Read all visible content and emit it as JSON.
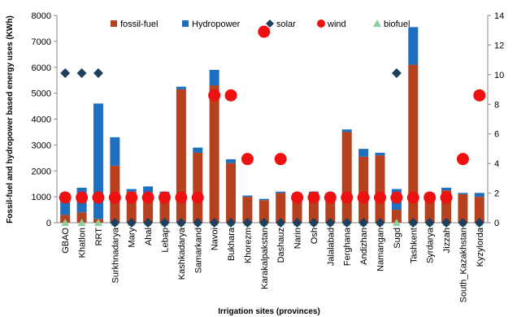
{
  "chart_data": {
    "type": "bar",
    "xlabel": "Irrigation sites (provinces)",
    "ylabel": "Fossil-fuel and hydropower based energy uses (KWh)",
    "ylim": [
      0,
      8000
    ],
    "y2lim": [
      0,
      14
    ],
    "yticks": [
      0,
      1000,
      2000,
      3000,
      4000,
      5000,
      6000,
      7000,
      8000
    ],
    "y2ticks": [
      0,
      2,
      4,
      6,
      8,
      10,
      12,
      14
    ],
    "legend_position": "top",
    "categories": [
      "GBAO",
      "Khatlon",
      "RRT",
      "Surkhnadarya",
      "Mary",
      "Ahal",
      "Lebap",
      "Kashkadarya",
      "Samarkand",
      "Navoi",
      "Bukhara",
      "Khorezm",
      "Karakalpakstan",
      "Dashauz",
      "Narin",
      "Osh",
      "Jalalabad",
      "Ferghana",
      "Andizhan",
      "Namangan",
      "Sugd",
      "Tashkent",
      "Syrdarya",
      "Jizzah",
      "South_Kazakhstan",
      "Kyzylorda"
    ],
    "series": [
      {
        "name": "fossil-fuel",
        "kind": "bar",
        "axis": "left",
        "color": "#b5411f",
        "values": [
          300,
          400,
          150,
          2200,
          1200,
          1150,
          1150,
          5150,
          2700,
          5300,
          2300,
          1000,
          870,
          1150,
          1100,
          800,
          1100,
          3500,
          2550,
          2600,
          500,
          6100,
          1100,
          1250,
          1100,
          1000
        ]
      },
      {
        "name": "Hydropower",
        "kind": "bar",
        "axis": "left",
        "color": "#1f6fbf",
        "values": [
          850,
          950,
          4450,
          1100,
          100,
          250,
          50,
          100,
          200,
          600,
          150,
          50,
          50,
          50,
          50,
          400,
          50,
          100,
          300,
          100,
          800,
          1450,
          50,
          100,
          50,
          150
        ]
      },
      {
        "name": "solar",
        "kind": "marker",
        "axis": "right",
        "color": "#1f3f5f",
        "values": [
          10.1,
          10.1,
          10.1,
          0,
          0,
          0,
          0,
          0,
          0,
          0,
          0,
          0,
          0,
          0,
          0,
          0,
          0,
          0,
          0,
          0,
          10.1,
          0,
          0,
          0,
          0,
          0
        ]
      },
      {
        "name": "wind",
        "kind": "marker",
        "axis": "right",
        "color": "#ee1111",
        "values": [
          1.7,
          1.7,
          1.7,
          1.7,
          1.7,
          1.7,
          1.7,
          1.7,
          1.7,
          8.6,
          8.6,
          4.3,
          12.9,
          4.3,
          1.7,
          1.7,
          1.7,
          1.7,
          1.7,
          1.7,
          1.7,
          1.7,
          1.7,
          1.7,
          4.3,
          8.6
        ]
      },
      {
        "name": "biofuel",
        "kind": "marker",
        "axis": "right",
        "color": "#8fcf9f",
        "values": [
          0,
          0,
          0,
          0,
          0,
          0,
          0,
          0,
          0,
          0,
          0,
          0,
          0,
          0,
          0,
          0,
          0,
          0,
          0,
          0,
          0,
          0,
          0,
          0,
          0,
          0
        ]
      }
    ]
  }
}
